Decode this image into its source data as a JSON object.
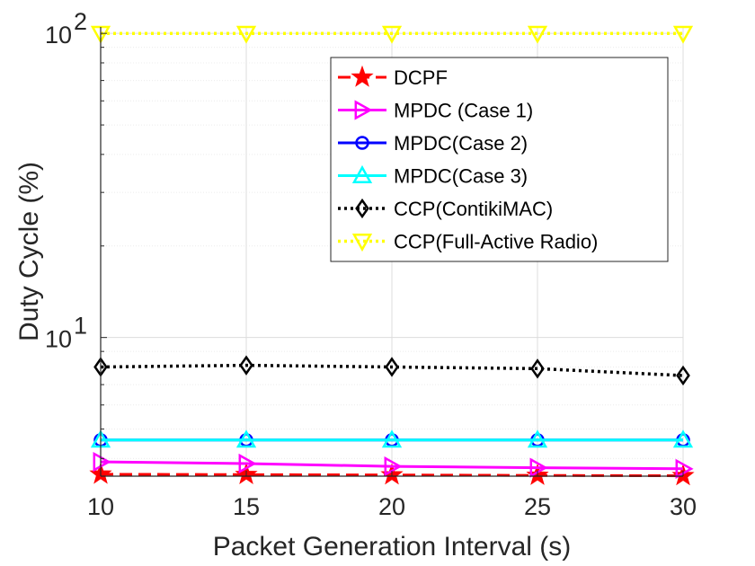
{
  "chart_data": {
    "type": "line",
    "title": "",
    "xlabel": "Packet Generation Interval (s)",
    "ylabel": "Duty Cycle (%)",
    "x": [
      10,
      15,
      20,
      25,
      30
    ],
    "xlim": [
      10,
      30
    ],
    "ylim": [
      3.5,
      105
    ],
    "yscale": "log",
    "xticks": [
      "10",
      "15",
      "20",
      "25",
      "30"
    ],
    "yticks": [
      {
        "value": 10,
        "base": "10",
        "exp": "1"
      },
      {
        "value": 100,
        "base": "10",
        "exp": "2"
      }
    ],
    "grid": true,
    "legend_position": "top-right",
    "series": [
      {
        "name": "DCPF",
        "values": [
          3.55,
          3.54,
          3.53,
          3.52,
          3.51
        ],
        "color": "#ff0000",
        "dash": "dashed",
        "marker": "star"
      },
      {
        "name": "MPDC (Case 1)",
        "values": [
          3.9,
          3.85,
          3.77,
          3.73,
          3.7
        ],
        "color": "#ff00ff",
        "dash": "solid",
        "marker": "triangle-right"
      },
      {
        "name": "MPDC(Case 2)",
        "values": [
          4.6,
          4.6,
          4.6,
          4.6,
          4.6
        ],
        "color": "#0000ff",
        "dash": "solid",
        "marker": "circle"
      },
      {
        "name": "MPDC(Case 3)",
        "values": [
          4.6,
          4.6,
          4.6,
          4.6,
          4.6
        ],
        "color": "#00ffff",
        "dash": "solid",
        "marker": "triangle-up"
      },
      {
        "name": "CCP(ContikiMAC)",
        "values": [
          8.0,
          8.1,
          8.0,
          7.9,
          7.5
        ],
        "color": "#000000",
        "dash": "dotted",
        "marker": "diamond"
      },
      {
        "name": "CCP(Full-Active Radio)",
        "values": [
          100,
          100,
          100,
          100,
          100
        ],
        "color": "#ffff00",
        "dash": "dotted",
        "marker": "triangle-down"
      }
    ]
  }
}
